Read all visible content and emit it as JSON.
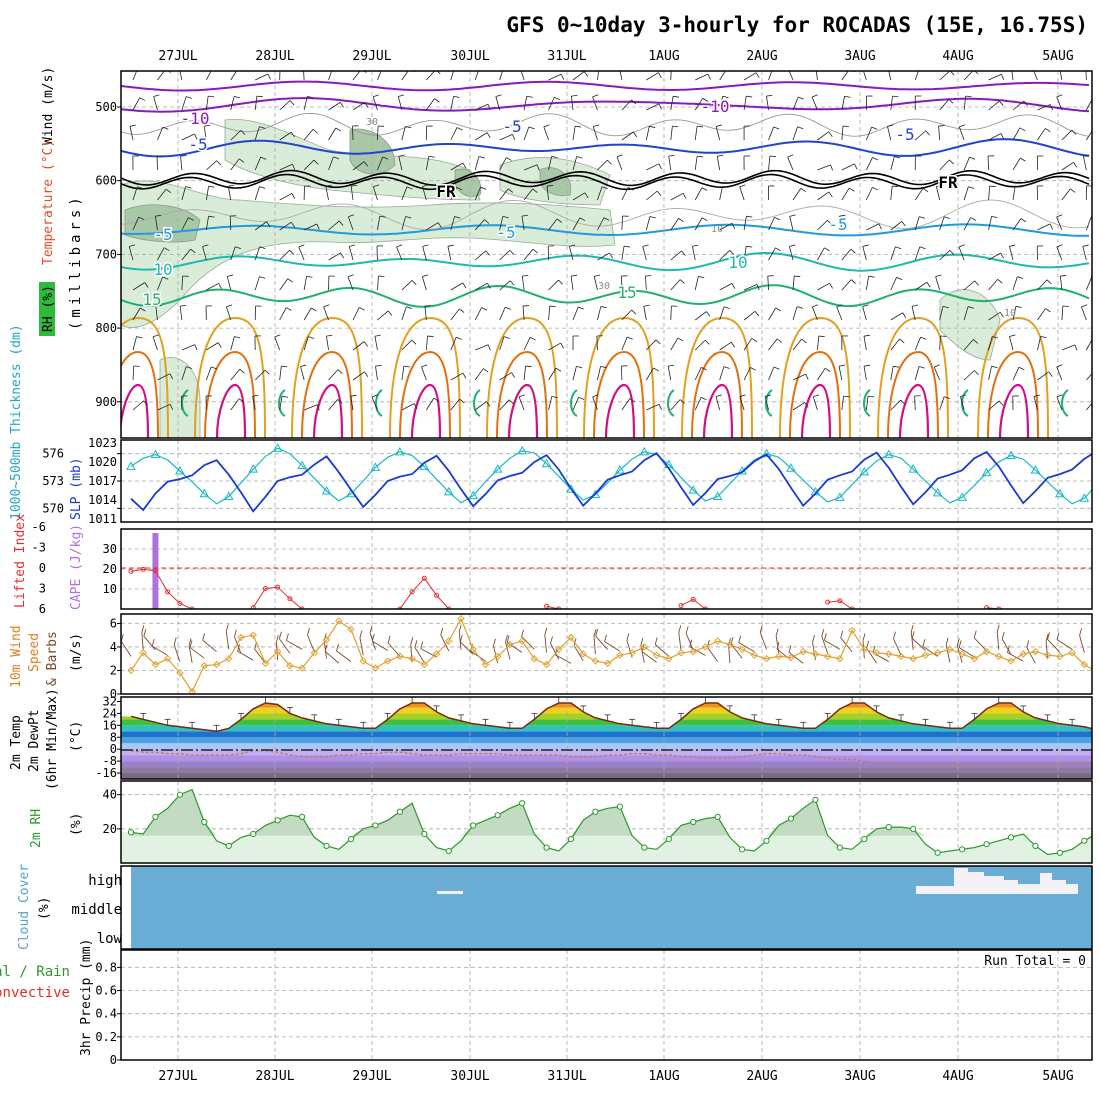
{
  "title": "GFS 0~10day 3-hourly for ROCADAS (15E, 16.75S)",
  "days": [
    "27JUL",
    "28JUL",
    "29JUL",
    "30JUL",
    "31JUL",
    "1AUG",
    "2AUG",
    "3AUG",
    "4AUG",
    "5AUG"
  ],
  "colors": {
    "frame": "#000000",
    "grid": "#aaaaaa",
    "temp_purple": "#8a1ab8",
    "temp_blue": "#2244cc",
    "temp_lightblue": "#2299dd",
    "temp_teal": "#20b8b0",
    "temp_green": "#20b070",
    "temp_orange": "#e0a020",
    "temp_darkorange": "#e07010",
    "temp_magenta": "#d01080",
    "rh_fill": "#d8ecd8",
    "rh_fill_dark": "#a8c8a8",
    "thickness": "#1ab8c8",
    "slp": "#1a3ccc",
    "cape": "#b070e0",
    "lifted": "#e03030",
    "wind10": "#e0a030",
    "barb10": "#7a4a2a",
    "rh2m": "#2a9a2a",
    "rh2m_fill": "#e2f2e2",
    "cloud": "#6aaed6",
    "cloud_high": "#f4f0f8"
  },
  "panels": {
    "upper": {
      "ylabel_wind": "Wind (m/s)",
      "ylabel_temp": "Temperature (°C)",
      "ylabel_rh": "RH (%)",
      "ylabel_units": "(millibars)",
      "yticks": [
        "500",
        "600",
        "700",
        "800",
        "900"
      ],
      "contour_labels": [
        "-10",
        "-10",
        "-5",
        "-5",
        "-5",
        "FR",
        "FR",
        "-5",
        "-5",
        "-5",
        "10",
        "10",
        "15",
        "15",
        "30",
        "30",
        "10",
        "10"
      ]
    },
    "thickness": {
      "ylabel_left": "1000~500mb Thickness (dm)",
      "ylabel_right": "SLP (mb)",
      "yticks_left": [
        "576",
        "573",
        "570"
      ],
      "yticks_right": [
        "1023",
        "1020",
        "1017",
        "1014",
        "1011"
      ]
    },
    "cape": {
      "ylabel_left": "Lifted Index",
      "ylabel_right": "CAPE (J/kg)",
      "yticks_left": [
        "-6",
        "-3",
        "0",
        "3",
        "6"
      ],
      "yticks_right": [
        "30",
        "20",
        "10"
      ]
    },
    "wind10": {
      "ylabel_a": "10m Wind",
      "ylabel_b": "Speed",
      "ylabel_c": "& Barbs",
      "ylabel_units": "(m/s)",
      "yticks": [
        "6",
        "4",
        "2",
        "0"
      ]
    },
    "temp2m": {
      "ylabel_a": "2m Temp",
      "ylabel_b": "2m DewPt",
      "ylabel_c": "(6hr Min/Max)",
      "ylabel_units": "(°C)",
      "yticks": [
        "32",
        "24",
        "16",
        "8",
        "0",
        "-8",
        "-16"
      ]
    },
    "rh2m": {
      "ylabel": "2m RH",
      "ylabel_units": "(%)",
      "yticks": [
        "40",
        "20"
      ]
    },
    "cloud": {
      "ylabel": "Cloud Cover",
      "ylabel_units": "(%)",
      "levels": [
        "high",
        "middle",
        "low"
      ]
    },
    "precip": {
      "ylabel_a": "tal / Rain",
      "ylabel_b": "Convective",
      "ylabel_units": "3hr Precip (mm)",
      "yticks": [
        "0.8",
        "0.6",
        "0.4",
        "0.2",
        "0"
      ],
      "run_total": "Run Total = 0"
    }
  },
  "chart_data": [
    {
      "type": "line",
      "name": "thickness",
      "unit": "dm",
      "ylim": [
        568.5,
        577.5
      ],
      "x_hours_from_start": 3,
      "values": [
        574.6,
        575.5,
        575.9,
        575.3,
        574.1,
        572.9,
        571.6,
        570.5,
        571.3,
        572.8,
        574.3,
        575.7,
        576.6,
        576.0,
        574.7,
        573.3,
        571.9,
        570.8,
        571.6,
        573.0,
        574.5,
        575.6,
        576.2,
        575.8,
        574.6,
        573.2,
        571.8,
        570.6,
        571.4,
        572.9,
        574.3,
        575.5,
        576.3,
        576.1,
        574.9,
        573.5,
        572.1,
        570.9,
        571.5,
        572.8,
        574.2,
        575.4,
        576.2,
        575.9,
        574.8,
        573.4,
        572.0,
        570.8,
        571.3,
        572.7,
        574.1,
        575.3,
        576.0,
        575.6,
        574.4,
        573.1,
        571.8,
        570.7,
        571.2,
        572.6,
        574.0,
        575.2,
        575.9,
        575.5,
        574.3,
        573.0,
        571.7,
        570.6,
        571.2,
        572.5,
        573.9,
        575.1,
        575.8,
        575.4,
        574.2,
        572.9,
        571.6,
        570.5,
        571.1,
        572.6
      ]
    },
    {
      "type": "line",
      "name": "slp",
      "unit": "mb",
      "ylim": [
        1010.5,
        1023.5
      ],
      "values": [
        1014.2,
        1012.4,
        1015.0,
        1016.9,
        1017.3,
        1017.9,
        1019.5,
        1020.3,
        1018.0,
        1015.2,
        1012.2,
        1014.5,
        1017.0,
        1017.6,
        1018.0,
        1019.6,
        1020.9,
        1018.4,
        1015.6,
        1012.9,
        1014.8,
        1017.0,
        1017.7,
        1018.1,
        1019.9,
        1021.0,
        1018.6,
        1015.7,
        1013.0,
        1014.9,
        1017.1,
        1017.8,
        1018.3,
        1020.0,
        1021.1,
        1018.8,
        1015.8,
        1013.1,
        1015.0,
        1017.2,
        1017.9,
        1018.5,
        1020.3,
        1021.4,
        1019.0,
        1016.0,
        1013.2,
        1015.1,
        1017.3,
        1017.8,
        1018.4,
        1020.1,
        1021.2,
        1018.9,
        1015.9,
        1013.1,
        1015.0,
        1017.2,
        1017.9,
        1018.5,
        1020.4,
        1021.5,
        1019.1,
        1016.1,
        1013.3,
        1015.2,
        1017.4,
        1018.0,
        1018.7,
        1020.6,
        1021.6,
        1019.3,
        1016.3,
        1013.5,
        1015.4,
        1017.5,
        1018.1,
        1018.8,
        1020.5,
        1021.7
      ]
    },
    {
      "type": "bar",
      "name": "cape",
      "unit": "J/kg",
      "ylim": [
        0,
        40
      ],
      "values": [
        0,
        0,
        38,
        0,
        0,
        0,
        0,
        0,
        0,
        0,
        0,
        0,
        0,
        0,
        0,
        0,
        0,
        0,
        0,
        0,
        0,
        0,
        0,
        0,
        0,
        0,
        0,
        0,
        0,
        0,
        0,
        0,
        0,
        0,
        0,
        0,
        0,
        0,
        0,
        0,
        0,
        0,
        0,
        0,
        0,
        0,
        0,
        0,
        0,
        0,
        0,
        0,
        0,
        0,
        0,
        0,
        0,
        0,
        0,
        0,
        0,
        0,
        0,
        0,
        0,
        0,
        0,
        0,
        0,
        0,
        0,
        0,
        0,
        0,
        0,
        0,
        0,
        0,
        0,
        0
      ]
    },
    {
      "type": "line",
      "name": "lifted_index",
      "unit": "K",
      "ylim": [
        6,
        -6
      ],
      "segments": [
        {
          "start": 0,
          "values": [
            0.5,
            0.2,
            0.4,
            3.5,
            5.2,
            6.0
          ]
        },
        {
          "start": 10,
          "values": [
            5.8,
            3.0,
            2.8,
            4.5,
            6.0
          ]
        },
        {
          "start": 22,
          "values": [
            6.0,
            3.5,
            1.5,
            4.0,
            6.0
          ]
        },
        {
          "start": 34,
          "values": [
            5.6,
            6.0
          ]
        },
        {
          "start": 45,
          "values": [
            5.5,
            4.6,
            6.0
          ]
        },
        {
          "start": 57,
          "values": [
            5.0,
            4.8,
            6.0
          ]
        },
        {
          "start": 70,
          "values": [
            5.8,
            6.0
          ]
        }
      ]
    },
    {
      "type": "line",
      "name": "wind10_speed",
      "unit": "m/s",
      "ylim": [
        0,
        6.8
      ],
      "values": [
        2.0,
        3.5,
        2.5,
        3.0,
        1.8,
        0.2,
        2.4,
        2.5,
        3.0,
        4.8,
        5.0,
        2.6,
        3.6,
        2.4,
        2.2,
        3.5,
        4.6,
        6.2,
        5.5,
        2.8,
        2.2,
        2.8,
        3.2,
        3.0,
        2.5,
        3.4,
        4.5,
        6.4,
        3.8,
        2.5,
        3.2,
        4.2,
        4.5,
        3.0,
        2.5,
        3.8,
        4.8,
        3.4,
        2.8,
        2.6,
        3.3,
        3.5,
        4.0,
        3.3,
        3.0,
        3.5,
        3.6,
        4.0,
        4.5,
        4.2,
        3.8,
        3.3,
        3.0,
        3.2,
        3.1,
        3.6,
        3.4,
        3.2,
        3.0,
        5.4,
        3.8,
        3.5,
        3.4,
        3.2,
        3.0,
        3.3,
        3.5,
        3.8,
        3.4,
        3.0,
        3.6,
        3.2,
        2.8,
        3.4,
        3.6,
        3.3,
        3.2,
        3.5,
        2.5,
        1.9
      ]
    },
    {
      "type": "area",
      "name": "temp2m",
      "unit": "°C",
      "ylim": [
        -20,
        35
      ],
      "values": [
        22,
        20,
        18,
        16,
        15,
        14,
        13,
        12,
        14,
        20,
        27,
        31,
        30,
        24,
        21,
        19,
        17,
        16,
        15,
        14,
        14,
        20,
        27,
        31,
        31,
        25,
        21,
        19,
        17,
        16,
        15,
        14,
        14,
        20,
        27,
        31,
        31,
        25,
        21,
        19,
        17,
        16,
        15,
        14,
        14,
        20,
        27,
        31,
        31,
        25,
        21,
        19,
        17,
        16,
        15,
        14,
        14,
        20,
        27,
        31,
        31,
        25,
        21,
        19,
        17,
        16,
        15,
        14,
        14,
        20,
        27,
        31,
        31,
        25,
        21,
        19,
        17,
        16,
        15,
        13
      ]
    },
    {
      "type": "line",
      "name": "dewpoint2m",
      "unit": "°C",
      "ylim": [
        -20,
        35
      ],
      "values": [
        -1,
        -2,
        -2,
        -3,
        -3,
        -4,
        -4,
        -4,
        -4,
        -3,
        -1,
        -1,
        -2,
        -4,
        -5,
        -5,
        -5,
        -4,
        -4,
        -3,
        -3,
        -2,
        -2,
        -3,
        -4,
        -4,
        -4,
        -3,
        -3,
        -3,
        -3,
        -4,
        -4,
        -4,
        -4,
        -4,
        -5,
        -5,
        -5,
        -4,
        -4,
        -3,
        -3,
        -4,
        -4,
        -5,
        -5,
        -6,
        -6,
        -6,
        -5,
        -4,
        -3,
        -3,
        -4,
        -4,
        -5,
        -6,
        -7,
        -7,
        -8,
        -9,
        -10,
        -10,
        -11,
        -11,
        -11,
        -11,
        -11,
        -11,
        -11,
        -11,
        -11,
        -11,
        -11,
        -11,
        -10,
        -10,
        -10,
        -10
      ]
    },
    {
      "type": "area",
      "name": "rh2m",
      "unit": "%",
      "ylim": [
        0,
        48
      ],
      "values": [
        18,
        17,
        27,
        32,
        40,
        43,
        24,
        13,
        10,
        15,
        17,
        22,
        25,
        28,
        27,
        15,
        10,
        8,
        14,
        20,
        22,
        25,
        30,
        35,
        17,
        9,
        7,
        13,
        22,
        25,
        28,
        32,
        35,
        17,
        9,
        7,
        14,
        25,
        30,
        32,
        33,
        16,
        9,
        8,
        14,
        22,
        24,
        26,
        27,
        15,
        8,
        7,
        13,
        22,
        26,
        32,
        37,
        16,
        9,
        8,
        14,
        20,
        21,
        21,
        20,
        11,
        6,
        7,
        8,
        9,
        11,
        13,
        15,
        17,
        10,
        5,
        6,
        8,
        13,
        17
      ]
    }
  ]
}
